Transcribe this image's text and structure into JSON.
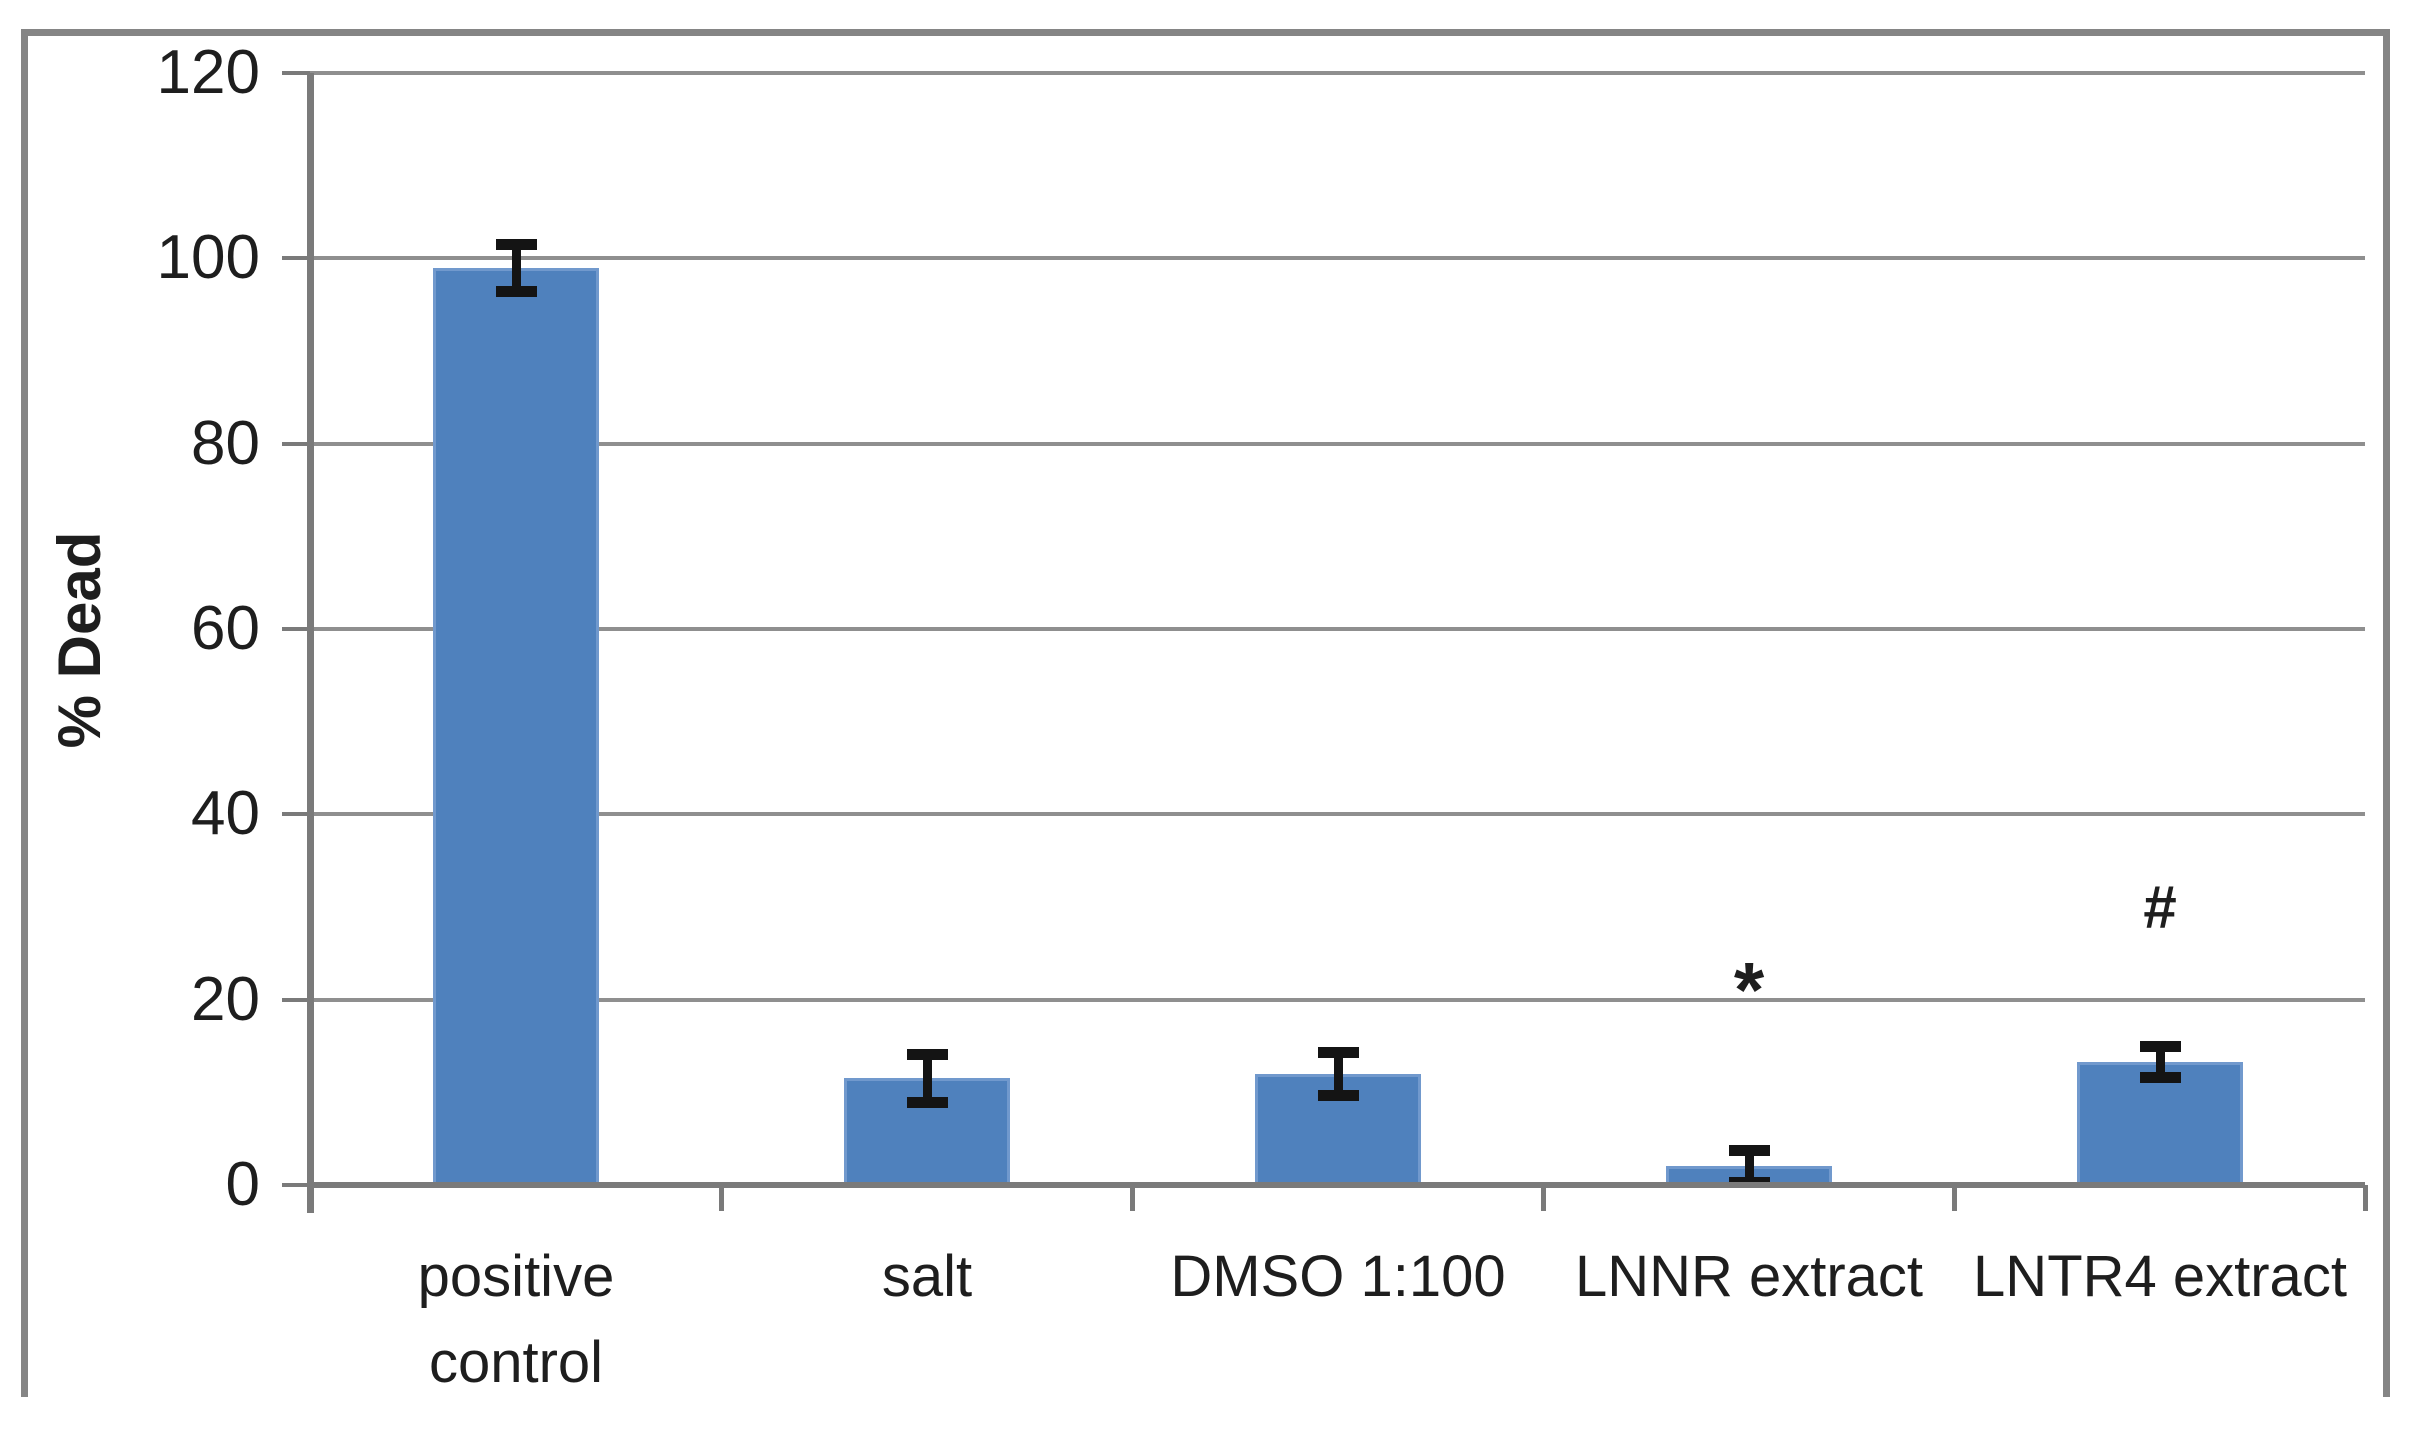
{
  "figure": {
    "background": "#FFFFFF",
    "border_color": "#858585"
  },
  "chart_data": {
    "type": "bar",
    "title": "",
    "xlabel": "",
    "ylabel": "% Dead",
    "ylim": [
      0,
      120
    ],
    "yticks": [
      0,
      20,
      40,
      60,
      80,
      100,
      120
    ],
    "grid": true,
    "legend": false,
    "categories": [
      "positive control",
      "salt",
      "DMSO 1:100",
      "LNNR extract",
      "LNTR4 extract"
    ],
    "category_labels": [
      "positive\ncontrol",
      "salt",
      "DMSO 1:100",
      "LNNR extract",
      "LNTR4 extract"
    ],
    "values": [
      99,
      11.5,
      12,
      2,
      13.3
    ],
    "error_bars": [
      2.6,
      2.6,
      2.4,
      1.8,
      1.7
    ],
    "annotations": [
      {
        "symbol": "*",
        "category": "LNNR extract",
        "category_index": 3,
        "y": 23
      },
      {
        "symbol": "#",
        "category": "LNTR4 extract",
        "category_index": 4,
        "y": 30
      }
    ],
    "colors": {
      "bar_fill": "#4F81BD",
      "bar_edge": "#7199CD",
      "gridline": "#8F8F8F",
      "axis": "#7A7A7A",
      "error_bar": "#141414",
      "text": "#1E1E1E"
    }
  }
}
